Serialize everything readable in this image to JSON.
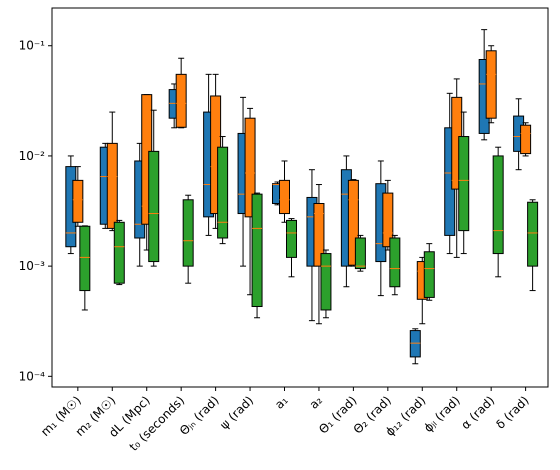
{
  "chart_data": {
    "type": "box",
    "log_y": true,
    "categories": [
      "m₁ (M☉)",
      "m₂ (M☉)",
      "dL (Mpc)",
      "t₀ (seconds)",
      "Θⱼₙ (rad)",
      "ψ (rad)",
      "a₁",
      "a₂",
      "Θ₁ (rad)",
      "Θ₂ (rad)",
      "ϕ₁₂ (rad)",
      "ϕⱼₗ (rad)",
      "α (rad)",
      "δ (rad)"
    ],
    "ylim": [
      8e-05,
      0.22
    ],
    "yticks": [
      {
        "value": 0.0001,
        "label": "10⁻⁴"
      },
      {
        "value": 0.001,
        "label": "10⁻³"
      },
      {
        "value": 0.01,
        "label": "10⁻²"
      },
      {
        "value": 0.1,
        "label": "10⁻¹"
      }
    ],
    "median_color": "#ff7f0e",
    "series": [
      {
        "color": "#1f77b4",
        "values": [
          {
            "whislo": 0.0013,
            "q1": 0.0015,
            "med": 0.002,
            "q3": 0.008,
            "whishi": 0.01
          },
          {
            "whislo": 0.0022,
            "q1": 0.0024,
            "med": 0.0065,
            "q3": 0.012,
            "whishi": 0.013
          },
          {
            "whislo": 0.001,
            "q1": 0.0018,
            "med": 0.0024,
            "q3": 0.009,
            "whishi": 0.013
          },
          {
            "whislo": 0.018,
            "q1": 0.022,
            "med": 0.03,
            "q3": 0.04,
            "whishi": 0.045
          },
          {
            "whislo": 0.0019,
            "q1": 0.0028,
            "med": 0.0055,
            "q3": 0.025,
            "whishi": 0.055
          },
          {
            "whislo": 0.001,
            "q1": 0.003,
            "med": 0.0045,
            "q3": 0.016,
            "whishi": 0.034
          },
          {
            "whislo": 0.0036,
            "q1": 0.0037,
            "med": 0.0055,
            "q3": 0.0056,
            "whishi": 0.0058
          },
          {
            "whislo": 0.00032,
            "q1": 0.001,
            "med": 0.0028,
            "q3": 0.0042,
            "whishi": 0.0075
          },
          {
            "whislo": 0.00065,
            "q1": 0.001,
            "med": 0.0045,
            "q3": 0.0075,
            "whishi": 0.01
          },
          {
            "whislo": 0.00054,
            "q1": 0.0011,
            "med": 0.0016,
            "q3": 0.0056,
            "whishi": 0.009
          },
          {
            "whislo": 0.00013,
            "q1": 0.00015,
            "med": 0.0002,
            "q3": 0.00026,
            "whishi": 0.00027
          },
          {
            "whislo": 0.0013,
            "q1": 0.0019,
            "med": 0.007,
            "q3": 0.018,
            "whishi": 0.037
          },
          {
            "whislo": 0.014,
            "q1": 0.016,
            "med": 0.045,
            "q3": 0.075,
            "whishi": 0.14
          },
          {
            "whislo": 0.0075,
            "q1": 0.011,
            "med": 0.015,
            "q3": 0.023,
            "whishi": 0.033
          }
        ]
      },
      {
        "color": "#ff7f0e",
        "values": [
          {
            "whislo": 0.0023,
            "q1": 0.0025,
            "med": 0.004,
            "q3": 0.006,
            "whishi": 0.008
          },
          {
            "whislo": 0.0021,
            "q1": 0.0022,
            "med": 0.0065,
            "q3": 0.013,
            "whishi": 0.025
          },
          {
            "whislo": 0.0014,
            "q1": 0.0024,
            "med": 0.0035,
            "q3": 0.036,
            "whishi": 0.036
          },
          {
            "whislo": 0.018,
            "q1": 0.0182,
            "med": 0.03,
            "q3": 0.055,
            "whishi": 0.077
          },
          {
            "whislo": 0.0022,
            "q1": 0.003,
            "med": 0.008,
            "q3": 0.035,
            "whishi": 0.055
          },
          {
            "whislo": 0.00055,
            "q1": 0.0028,
            "med": 0.007,
            "q3": 0.022,
            "whishi": 0.027
          },
          {
            "whislo": 0.0025,
            "q1": 0.003,
            "med": 0.004,
            "q3": 0.006,
            "whishi": 0.009
          },
          {
            "whislo": 0.0003,
            "q1": 0.001,
            "med": 0.003,
            "q3": 0.0037,
            "whishi": 0.0055
          },
          {
            "whislo": 0.001,
            "q1": 0.00102,
            "med": 0.004,
            "q3": 0.006,
            "whishi": 0.0061
          },
          {
            "whislo": 0.0014,
            "q1": 0.0015,
            "med": 0.002,
            "q3": 0.0046,
            "whishi": 0.006
          },
          {
            "whislo": 0.0003,
            "q1": 0.0005,
            "med": 0.0009,
            "q3": 0.0011,
            "whishi": 0.0012
          },
          {
            "whislo": 0.0012,
            "q1": 0.005,
            "med": 0.006,
            "q3": 0.034,
            "whishi": 0.05
          },
          {
            "whislo": 0.02,
            "q1": 0.022,
            "med": 0.055,
            "q3": 0.09,
            "whishi": 0.1
          },
          {
            "whislo": 0.01,
            "q1": 0.0105,
            "med": 0.016,
            "q3": 0.019,
            "whishi": 0.02
          }
        ]
      },
      {
        "color": "#2ca02c",
        "values": [
          {
            "whislo": 0.0004,
            "q1": 0.0006,
            "med": 0.0012,
            "q3": 0.0023,
            "whishi": 0.00232
          },
          {
            "whislo": 0.00068,
            "q1": 0.0007,
            "med": 0.0015,
            "q3": 0.0025,
            "whishi": 0.0026
          },
          {
            "whislo": 0.001,
            "q1": 0.0011,
            "med": 0.003,
            "q3": 0.011,
            "whishi": 0.026
          },
          {
            "whislo": 0.0007,
            "q1": 0.001,
            "med": 0.0017,
            "q3": 0.004,
            "whishi": 0.0044
          },
          {
            "whislo": 0.0016,
            "q1": 0.0018,
            "med": 0.0025,
            "q3": 0.012,
            "whishi": 0.015
          },
          {
            "whislo": 0.00034,
            "q1": 0.00043,
            "med": 0.0022,
            "q3": 0.0045,
            "whishi": 0.0046
          },
          {
            "whislo": 0.0008,
            "q1": 0.0012,
            "med": 0.002,
            "q3": 0.0026,
            "whishi": 0.0027
          },
          {
            "whislo": 0.00034,
            "q1": 0.0004,
            "med": 0.001,
            "q3": 0.0013,
            "whishi": 0.0014
          },
          {
            "whislo": 0.0009,
            "q1": 0.00095,
            "med": 0.001,
            "q3": 0.0018,
            "whishi": 0.0019
          },
          {
            "whislo": 0.00055,
            "q1": 0.00065,
            "med": 0.00095,
            "q3": 0.0018,
            "whishi": 0.0019
          },
          {
            "whislo": 0.00049,
            "q1": 0.00052,
            "med": 0.00095,
            "q3": 0.00135,
            "whishi": 0.0016
          },
          {
            "whislo": 0.0013,
            "q1": 0.0021,
            "med": 0.006,
            "q3": 0.015,
            "whishi": 0.025
          },
          {
            "whislo": 0.0008,
            "q1": 0.0013,
            "med": 0.0021,
            "q3": 0.01,
            "whishi": 0.012
          },
          {
            "whislo": 0.0006,
            "q1": 0.001,
            "med": 0.002,
            "q3": 0.0038,
            "whishi": 0.004
          }
        ]
      }
    ]
  }
}
